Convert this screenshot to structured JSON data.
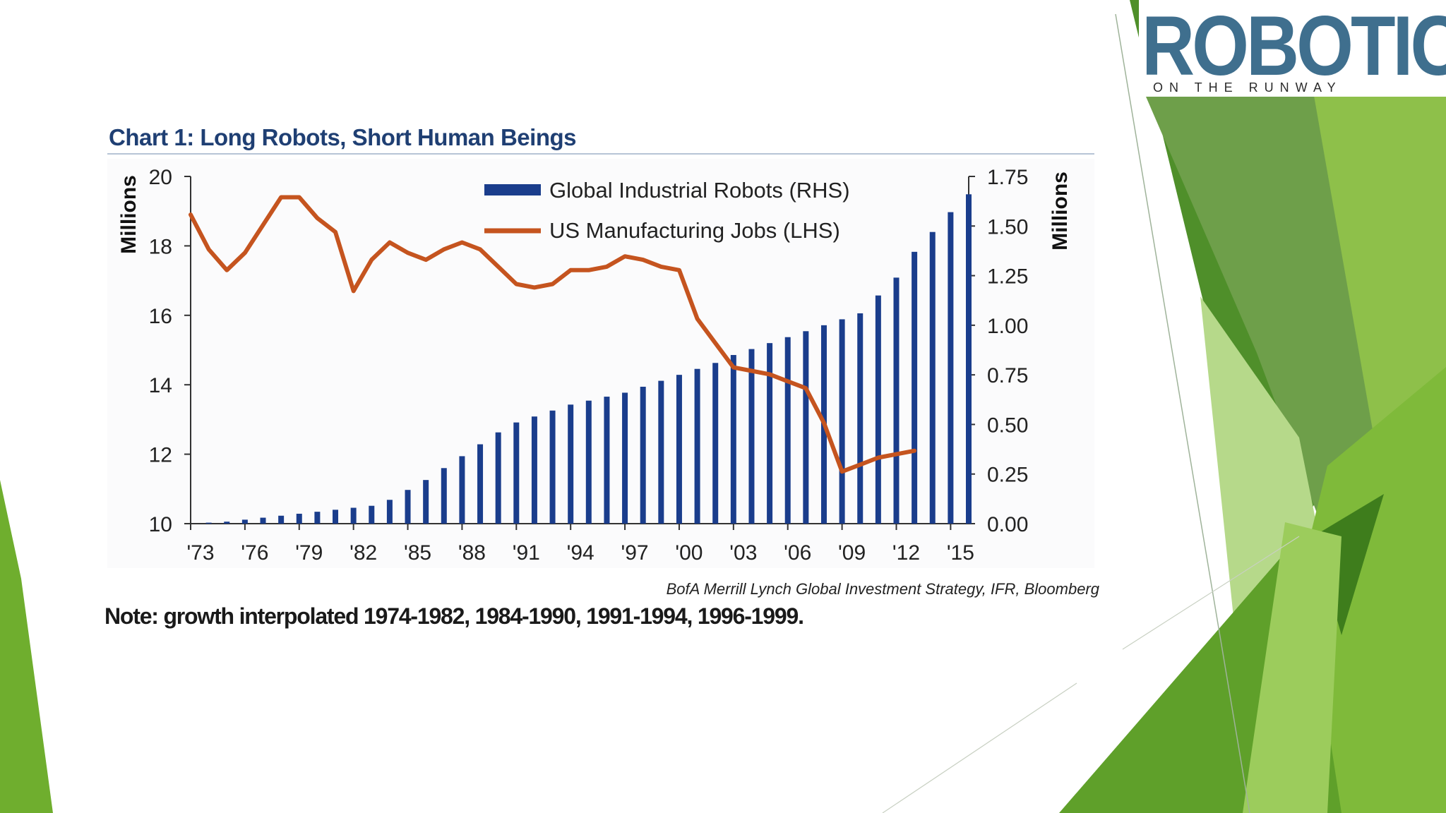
{
  "logo": {
    "word": "ROBOTICS",
    "tagline": "ON THE RUNWAY"
  },
  "colors": {
    "robots_bar": "#1a3d8c",
    "jobs_line": "#c5541f",
    "slide_green_dark": "#4f8f2a",
    "slide_green": "#7fba3a",
    "slide_green_light": "#b6d98a",
    "title": "#1f3f73"
  },
  "source": "BofA Merrill Lynch Global Investment Strategy, IFR, Bloomberg",
  "note": "Note: growth interpolated 1974-1982, 1984-1990, 1991-1994, 1996-1999.",
  "chart_data": {
    "type": "bar+line",
    "title": "Chart 1: Long Robots, Short Human Beings",
    "left_axis": {
      "label": "Millions",
      "range": [
        10,
        20
      ],
      "ticks": [
        "10",
        "12",
        "14",
        "16",
        "18",
        "20"
      ]
    },
    "right_axis": {
      "label": "Millions",
      "range": [
        0,
        1.75
      ],
      "ticks": [
        "0.00",
        "0.25",
        "0.50",
        "0.75",
        "1.00",
        "1.25",
        "1.50",
        "1.75"
      ]
    },
    "x_axis": {
      "range": [
        1973,
        2016
      ],
      "ticks": [
        "'73",
        "'76",
        "'79",
        "'82",
        "'85",
        "'88",
        "'91",
        "'94",
        "'97",
        "'00",
        "'03",
        "'06",
        "'09",
        "'12",
        "'15"
      ]
    },
    "legend": [
      {
        "label": "Global Industrial Robots (RHS)",
        "kind": "bar"
      },
      {
        "label": "US Manufacturing Jobs (LHS)",
        "kind": "line"
      }
    ],
    "series": [
      {
        "name": "Global Industrial Robots (RHS)",
        "axis": "right",
        "type": "bar",
        "years": [
          1974,
          1975,
          1976,
          1977,
          1978,
          1979,
          1980,
          1981,
          1982,
          1983,
          1984,
          1985,
          1986,
          1987,
          1988,
          1989,
          1990,
          1991,
          1992,
          1993,
          1994,
          1995,
          1996,
          1997,
          1998,
          1999,
          2000,
          2001,
          2002,
          2003,
          2004,
          2005,
          2006,
          2007,
          2008,
          2009,
          2010,
          2011,
          2012,
          2013,
          2014,
          2015,
          2016
        ],
        "values": [
          0.005,
          0.01,
          0.02,
          0.03,
          0.04,
          0.05,
          0.06,
          0.07,
          0.08,
          0.09,
          0.12,
          0.17,
          0.22,
          0.28,
          0.34,
          0.4,
          0.46,
          0.51,
          0.54,
          0.57,
          0.6,
          0.62,
          0.64,
          0.66,
          0.69,
          0.72,
          0.75,
          0.78,
          0.81,
          0.85,
          0.88,
          0.91,
          0.94,
          0.97,
          1.0,
          1.03,
          1.06,
          1.15,
          1.24,
          1.37,
          1.47,
          1.57,
          1.66
        ]
      },
      {
        "name": "US Manufacturing Jobs (LHS)",
        "axis": "left",
        "type": "line",
        "years": [
          1973,
          1974,
          1975,
          1976,
          1977,
          1978,
          1979,
          1980,
          1981,
          1982,
          1983,
          1984,
          1985,
          1986,
          1987,
          1988,
          1989,
          1990,
          1991,
          1992,
          1993,
          1994,
          1995,
          1996,
          1997,
          1998,
          1999,
          2000,
          2001,
          2002,
          2003,
          2004,
          2005,
          2006,
          2007,
          2008,
          2009,
          2010,
          2011,
          2012,
          2013
        ],
        "values": [
          18.9,
          17.9,
          17.3,
          17.8,
          18.6,
          19.4,
          19.4,
          18.8,
          18.4,
          16.7,
          17.6,
          18.1,
          17.8,
          17.6,
          17.9,
          18.1,
          17.9,
          17.4,
          16.9,
          16.8,
          16.9,
          17.3,
          17.3,
          17.4,
          17.7,
          17.6,
          17.4,
          17.3,
          15.9,
          15.2,
          14.5,
          14.4,
          14.3,
          14.1,
          13.9,
          12.9,
          11.5,
          11.7,
          11.9,
          12.0,
          12.1
        ]
      }
    ]
  }
}
